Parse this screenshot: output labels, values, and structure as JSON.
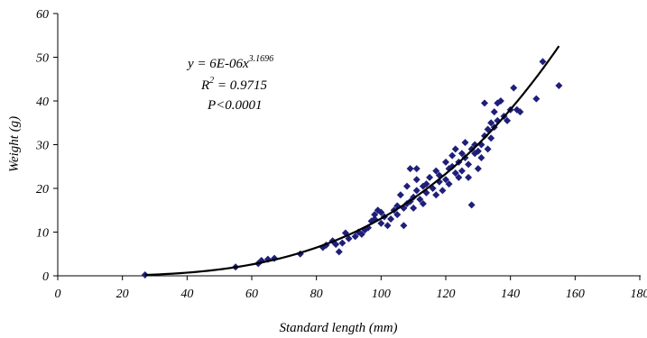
{
  "chart_data": {
    "type": "scatter",
    "xlabel": "Standard length (mm)",
    "ylabel": "Weight (g)",
    "xlim": [
      0,
      180
    ],
    "ylim": [
      0,
      60
    ],
    "xticks": [
      0,
      20,
      40,
      60,
      80,
      100,
      120,
      140,
      160,
      180
    ],
    "yticks": [
      0,
      10,
      20,
      30,
      40,
      50,
      60
    ],
    "grid": false,
    "legend": "none",
    "marker_color": "#1f1f7a",
    "curve_color": "#000000",
    "annotation": {
      "equation_base": "y = 6E-06x",
      "equation_exponent": "3.1696",
      "r2_base": "R",
      "r2_exponent": "2",
      "r2_value": " = 0.9715",
      "p_value": "P<0.0001"
    },
    "trendline": {
      "type": "power",
      "a": 6e-06,
      "b": 3.1696,
      "x_range": [
        27,
        155
      ]
    },
    "points": [
      [
        27,
        0.2
      ],
      [
        55,
        2
      ],
      [
        62,
        2.8
      ],
      [
        63,
        3.5
      ],
      [
        65,
        3.8
      ],
      [
        67,
        4
      ],
      [
        75,
        5
      ],
      [
        82,
        6.5
      ],
      [
        83,
        7
      ],
      [
        85,
        8
      ],
      [
        86,
        7.2
      ],
      [
        87,
        5.5
      ],
      [
        88,
        7.5
      ],
      [
        89,
        9.8
      ],
      [
        90,
        8.5
      ],
      [
        92,
        9
      ],
      [
        93,
        10
      ],
      [
        94,
        9.5
      ],
      [
        95,
        10.5
      ],
      [
        96,
        11
      ],
      [
        97,
        12.5
      ],
      [
        98,
        13
      ],
      [
        98,
        14
      ],
      [
        99,
        15
      ],
      [
        100,
        12
      ],
      [
        100,
        14.5
      ],
      [
        101,
        13.5
      ],
      [
        102,
        11.5
      ],
      [
        103,
        13
      ],
      [
        104,
        15
      ],
      [
        105,
        14
      ],
      [
        105,
        16
      ],
      [
        106,
        18.5
      ],
      [
        107,
        15.5
      ],
      [
        107,
        11.5
      ],
      [
        108,
        16.5
      ],
      [
        108,
        20.5
      ],
      [
        109,
        17
      ],
      [
        109,
        24.5
      ],
      [
        110,
        18
      ],
      [
        110,
        15.5
      ],
      [
        111,
        22
      ],
      [
        111,
        24.5
      ],
      [
        111,
        19.5
      ],
      [
        112,
        17.5
      ],
      [
        113,
        20.5
      ],
      [
        113,
        16.5
      ],
      [
        114,
        19
      ],
      [
        114,
        21
      ],
      [
        115,
        22.5
      ],
      [
        116,
        20
      ],
      [
        117,
        24
      ],
      [
        117,
        18.5
      ],
      [
        118,
        21.5
      ],
      [
        118,
        23
      ],
      [
        119,
        19.5
      ],
      [
        120,
        22
      ],
      [
        120,
        26
      ],
      [
        121,
        24.5
      ],
      [
        121,
        21
      ],
      [
        122,
        25
      ],
      [
        122,
        27.5
      ],
      [
        123,
        23.5
      ],
      [
        123,
        29
      ],
      [
        124,
        26
      ],
      [
        124,
        22.5
      ],
      [
        125,
        28
      ],
      [
        125,
        24
      ],
      [
        126,
        27
      ],
      [
        126,
        30.5
      ],
      [
        127,
        25.5
      ],
      [
        127,
        22.5
      ],
      [
        128,
        16.2
      ],
      [
        128,
        29
      ],
      [
        129,
        28
      ],
      [
        129,
        30
      ],
      [
        130,
        24.5
      ],
      [
        130,
        28.5
      ],
      [
        131,
        30
      ],
      [
        131,
        27
      ],
      [
        132,
        32
      ],
      [
        132,
        39.5
      ],
      [
        133,
        33.5
      ],
      [
        133,
        29
      ],
      [
        134,
        35
      ],
      [
        134,
        31.5
      ],
      [
        135,
        34
      ],
      [
        135,
        37.5
      ],
      [
        136,
        35.5
      ],
      [
        136,
        39.5
      ],
      [
        137,
        40
      ],
      [
        138,
        36.5
      ],
      [
        139,
        35.5
      ],
      [
        140,
        38
      ],
      [
        141,
        43
      ],
      [
        142,
        38
      ],
      [
        143,
        37.5
      ],
      [
        148,
        40.5
      ],
      [
        150,
        49
      ],
      [
        155,
        43.5
      ]
    ]
  }
}
